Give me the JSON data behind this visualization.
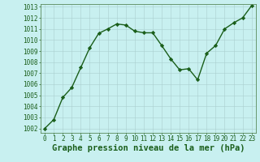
{
  "x": [
    0,
    1,
    2,
    3,
    4,
    5,
    6,
    7,
    8,
    9,
    10,
    11,
    12,
    13,
    14,
    15,
    16,
    17,
    18,
    19,
    20,
    21,
    22,
    23
  ],
  "y": [
    1002.0,
    1002.8,
    1004.8,
    1005.7,
    1007.5,
    1009.3,
    1010.6,
    1011.0,
    1011.45,
    1011.35,
    1010.8,
    1010.65,
    1010.65,
    1009.5,
    1008.3,
    1007.3,
    1007.4,
    1006.4,
    1008.8,
    1009.5,
    1011.0,
    1011.55,
    1012.0,
    1013.1
  ],
  "line_color": "#1a5e1a",
  "marker": "D",
  "marker_size": 2.2,
  "bg_color": "#c8f0f0",
  "grid_color": "#aacece",
  "xlabel": "Graphe pression niveau de la mer (hPa)",
  "xlabel_fontsize": 7.5,
  "xlabel_color": "#1a5e1a",
  "ytick_min": 1002,
  "ytick_max": 1013,
  "ytick_step": 1,
  "xtick_labels": [
    "0",
    "1",
    "2",
    "3",
    "4",
    "5",
    "6",
    "7",
    "8",
    "9",
    "10",
    "11",
    "12",
    "13",
    "14",
    "15",
    "16",
    "17",
    "18",
    "19",
    "20",
    "21",
    "22",
    "23"
  ],
  "tick_fontsize": 5.5,
  "tick_color": "#1a5e1a",
  "spine_color": "#5a8a5a",
  "linewidth": 1.0
}
